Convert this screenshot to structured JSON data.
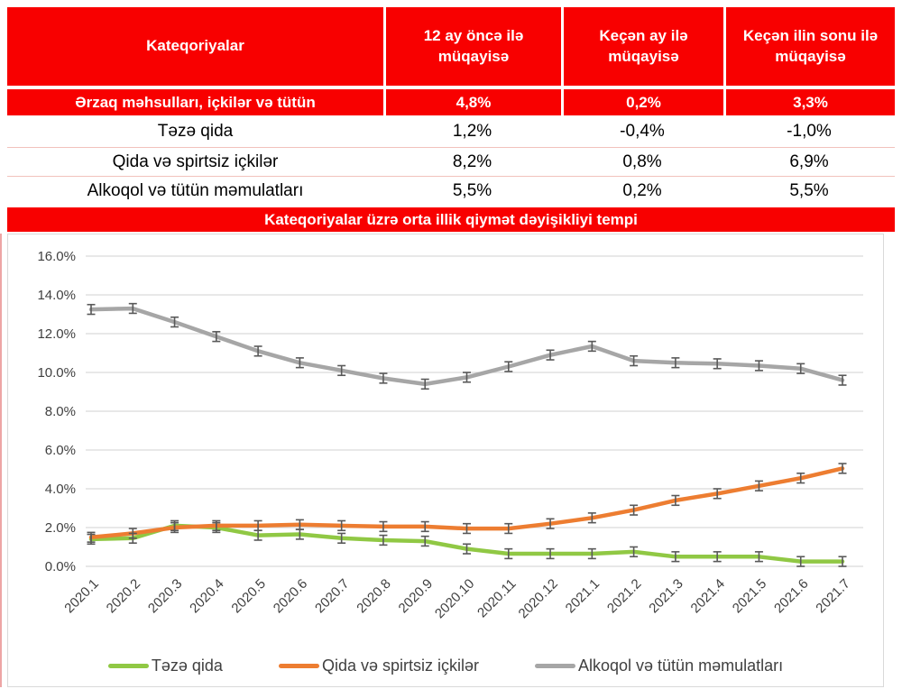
{
  "table": {
    "headers": [
      "Kateqoriyalar",
      "12 ay öncə ilə müqayisə",
      "Keçən ay ilə müqayisə",
      "Keçən ilin sonu ilə müqayisə"
    ],
    "rows": [
      {
        "label": "Ərzaq məhsulları, içkilər və tütün",
        "values": [
          "4,8%",
          "0,2%",
          "3,3%"
        ]
      },
      {
        "label": "Təzə qida",
        "values": [
          "1,2%",
          "-0,4%",
          "-1,0%"
        ]
      },
      {
        "label": "Qida və spirtsiz içkilər",
        "values": [
          "8,2%",
          "0,8%",
          "6,9%"
        ]
      },
      {
        "label": "Alkoqol və tütün məmulatları",
        "values": [
          "5,5%",
          "0,2%",
          "5,5%"
        ]
      }
    ]
  },
  "chart_title": "Kateqoriyalar üzrə orta illik qiymət dəyişikliyi tempi",
  "chart_data": {
    "type": "line",
    "title": "Kateqoriyalar üzrə orta illik qiymət dəyişikliyi tempi",
    "x": [
      "2020.1",
      "2020.2",
      "2020.3",
      "2020.4",
      "2020.5",
      "2020.6",
      "2020.7",
      "2020.8",
      "2020.9",
      "2020.10",
      "2020.11",
      "2020.12",
      "2021.1",
      "2021.2",
      "2021.3",
      "2021.4",
      "2021.5",
      "2021.6",
      "2021.7"
    ],
    "series": [
      {
        "name": "Təzə qida",
        "color": "#90c844",
        "values": [
          1.4,
          1.45,
          2.1,
          2.0,
          1.6,
          1.65,
          1.45,
          1.35,
          1.3,
          0.9,
          0.65,
          0.65,
          0.65,
          0.75,
          0.5,
          0.5,
          0.5,
          0.25,
          0.25
        ]
      },
      {
        "name": "Qida və spirtsiz içkilər",
        "color": "#ed7d31",
        "values": [
          1.5,
          1.7,
          2.0,
          2.1,
          2.1,
          2.15,
          2.1,
          2.05,
          2.05,
          1.95,
          1.95,
          2.2,
          2.5,
          2.9,
          3.4,
          3.75,
          4.15,
          4.55,
          5.05
        ]
      },
      {
        "name": "Alkoqol və tütün məmulatları",
        "color": "#a6a6a6",
        "values": [
          13.25,
          13.3,
          12.6,
          11.85,
          11.1,
          10.5,
          10.1,
          9.7,
          9.4,
          9.75,
          10.3,
          10.9,
          11.35,
          10.6,
          10.5,
          10.45,
          10.35,
          10.2,
          9.6
        ]
      }
    ],
    "error_bar": 0.25,
    "ylim": [
      0,
      16
    ],
    "ytick_step": 2,
    "ytick_suffix": "%",
    "grid": "horizontal",
    "legend_position": "bottom"
  },
  "colors": {
    "brand_red": "#f80000",
    "row_separator": "#f2c2bc",
    "gridline": "#d9d9d9",
    "error_bar": "#595959",
    "axis_text": "#3f3f3f"
  }
}
